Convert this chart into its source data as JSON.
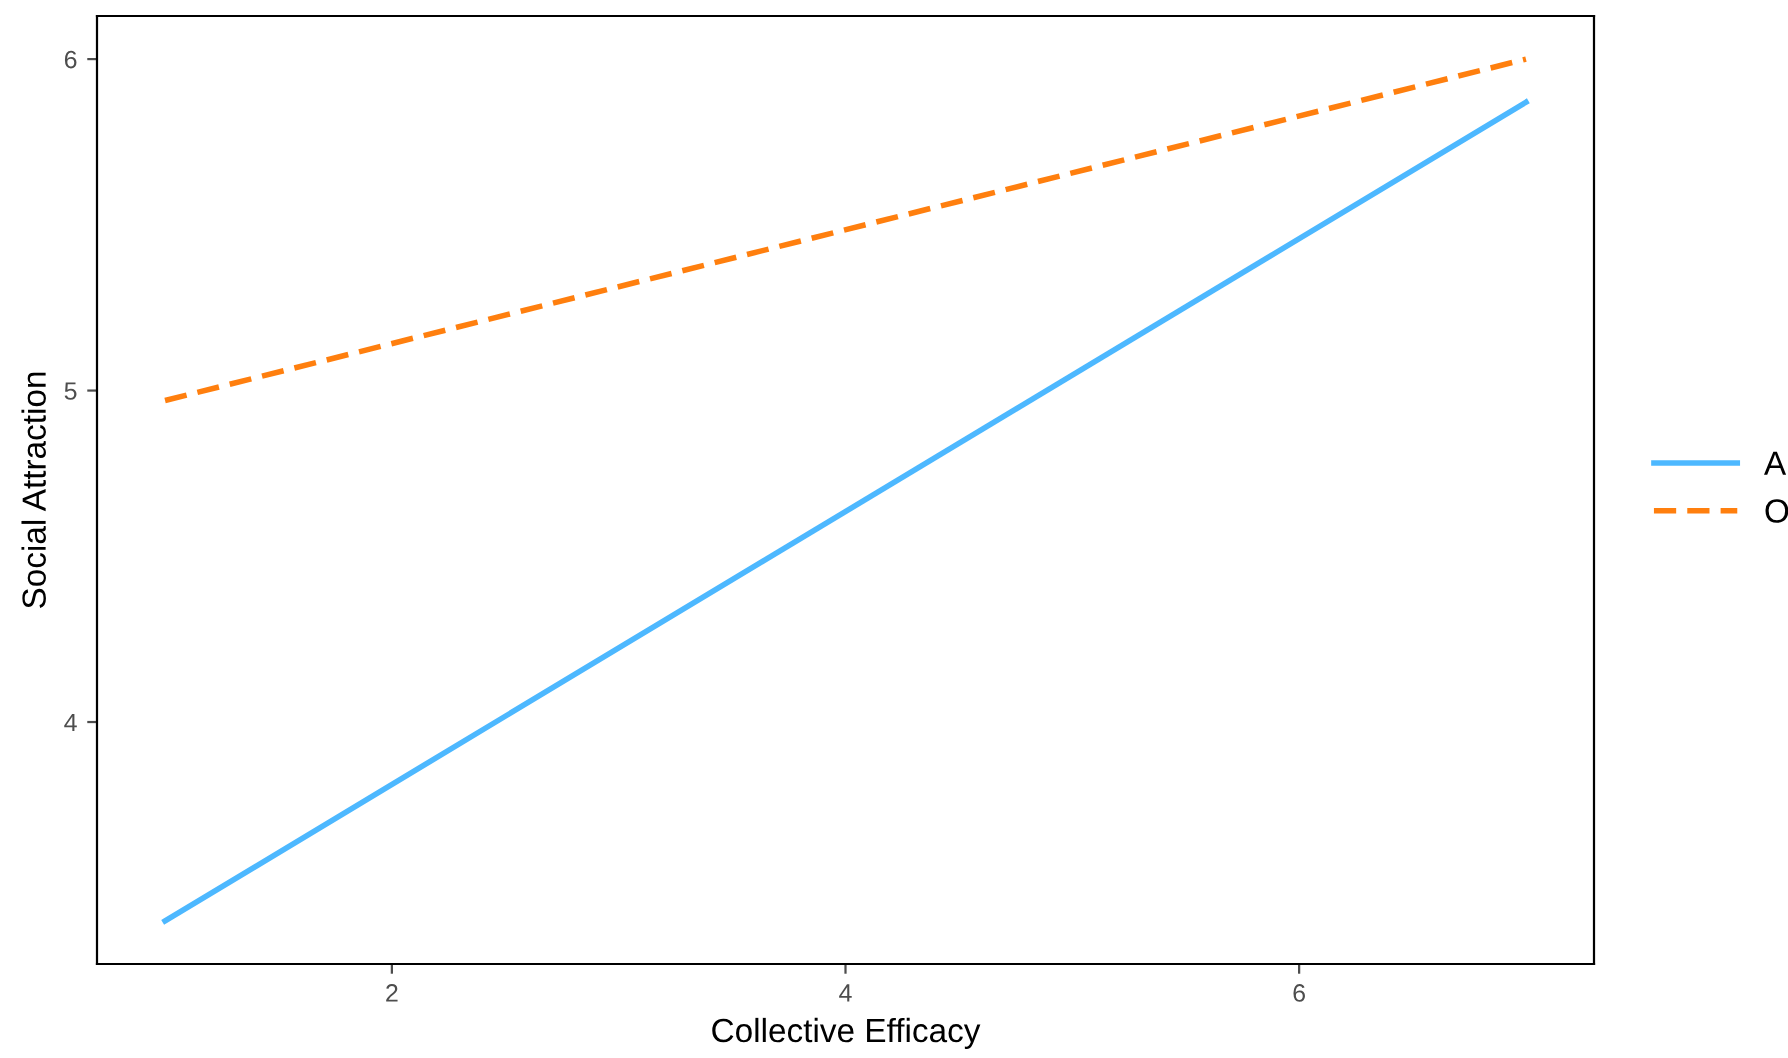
{
  "chart_data": {
    "type": "line",
    "xlabel": "Collective Efficacy",
    "ylabel": "Social Attraction",
    "x": [
      1,
      7
    ],
    "series": [
      {
        "name": "A",
        "color": "#4db8ff",
        "values": [
          3.4,
          5.87
        ],
        "line_style": "solid"
      },
      {
        "name": "O",
        "color": "#ff7f0e",
        "values": [
          4.97,
          6.0
        ],
        "line_style": "dashed"
      }
    ],
    "xlim": [
      0.7,
      7.3
    ],
    "xticks": [
      2,
      4,
      6
    ],
    "ylim": [
      3.27,
      6.13
    ],
    "yticks": [
      4,
      5,
      6
    ],
    "grid": false,
    "legend": "right"
  }
}
